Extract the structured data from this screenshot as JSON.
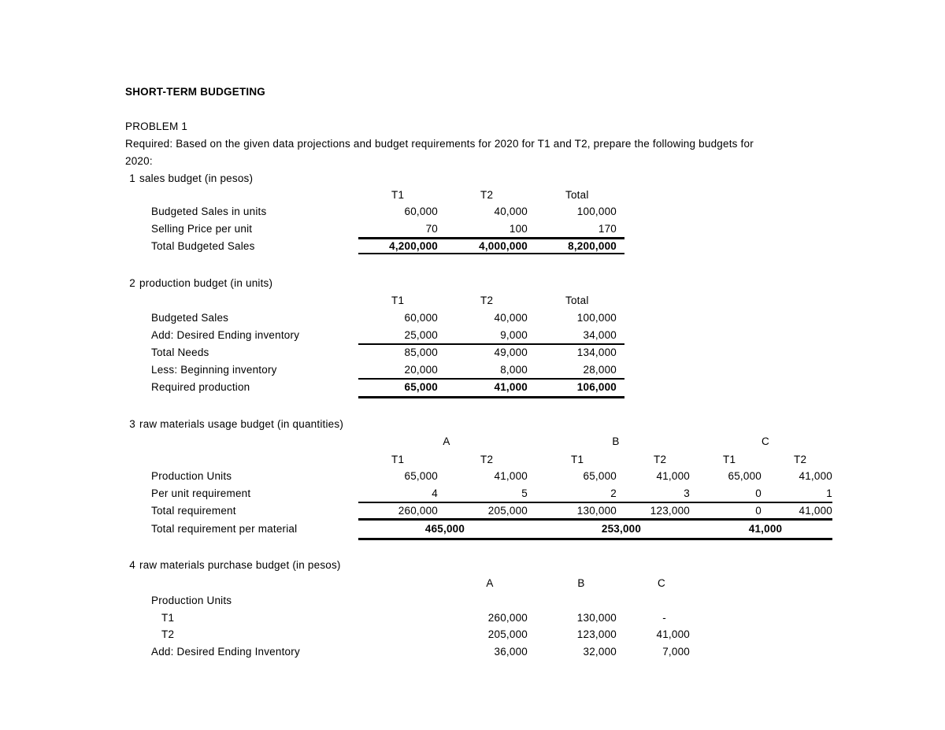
{
  "title": "SHORT-TERM BUDGETING",
  "problem": "PROBLEM 1",
  "required_line1": "Required: Based on the given data projections and budget requirements for 2020 for T1 and T2, prepare the following budgets for",
  "required_line2": "2020:",
  "sales_budget": {
    "number": "1",
    "title": "sales budget (in pesos)",
    "headers": [
      "T1",
      "T2",
      "Total"
    ],
    "rows": [
      {
        "label": "Budgeted Sales in units",
        "values": [
          "60,000",
          "40,000",
          "100,000"
        ]
      },
      {
        "label": "Selling Price per unit",
        "values": [
          "70",
          "100",
          "170"
        ]
      },
      {
        "label": "Total Budgeted Sales",
        "values": [
          "4,200,000",
          "4,000,000",
          "8,200,000"
        ]
      }
    ]
  },
  "production_budget": {
    "number": "2",
    "title": "production budget (in units)",
    "headers": [
      "T1",
      "T2",
      "Total"
    ],
    "rows": [
      {
        "label": "Budgeted Sales",
        "values": [
          "60,000",
          "40,000",
          "100,000"
        ]
      },
      {
        "label": "Add: Desired Ending inventory",
        "values": [
          "25,000",
          "9,000",
          "34,000"
        ]
      },
      {
        "label": "Total Needs",
        "values": [
          "85,000",
          "49,000",
          "134,000"
        ]
      },
      {
        "label": "Less: Beginning inventory",
        "values": [
          "20,000",
          "8,000",
          "28,000"
        ]
      },
      {
        "label": "Required production",
        "values": [
          "65,000",
          "41,000",
          "106,000"
        ]
      }
    ]
  },
  "raw_materials_usage": {
    "number": "3",
    "title": "raw materials usage budget (in quantities)",
    "materials": [
      "A",
      "B",
      "C"
    ],
    "periods": [
      "T1",
      "T2",
      "T1",
      "T2",
      "T1",
      "T2"
    ],
    "rows": [
      {
        "label": "Production Units",
        "values": [
          "65,000",
          "41,000",
          "65,000",
          "41,000",
          "65,000",
          "41,000"
        ]
      },
      {
        "label": "Per unit requirement",
        "values": [
          "4",
          "5",
          "2",
          "3",
          "0",
          "1"
        ]
      },
      {
        "label": "Total requirement",
        "values": [
          "260,000",
          "205,000",
          "130,000",
          "123,000",
          "0",
          "41,000"
        ]
      }
    ],
    "total_per_material": {
      "label": "Total requirement per material",
      "values": [
        "465,000",
        "253,000",
        "41,000"
      ]
    }
  },
  "raw_materials_purchase": {
    "number": "4",
    "title": "raw materials purchase budget (in pesos)",
    "materials": [
      "A",
      "B",
      "C"
    ],
    "rows": [
      {
        "label": "Production Units",
        "values": [
          "",
          "",
          ""
        ]
      },
      {
        "label": "T1",
        "values": [
          "260,000",
          "130,000",
          "-"
        ]
      },
      {
        "label": "T2",
        "values": [
          "205,000",
          "123,000",
          "41,000"
        ]
      },
      {
        "label": "Add: Desired Ending Inventory",
        "values": [
          "36,000",
          "32,000",
          "7,000"
        ]
      }
    ]
  }
}
